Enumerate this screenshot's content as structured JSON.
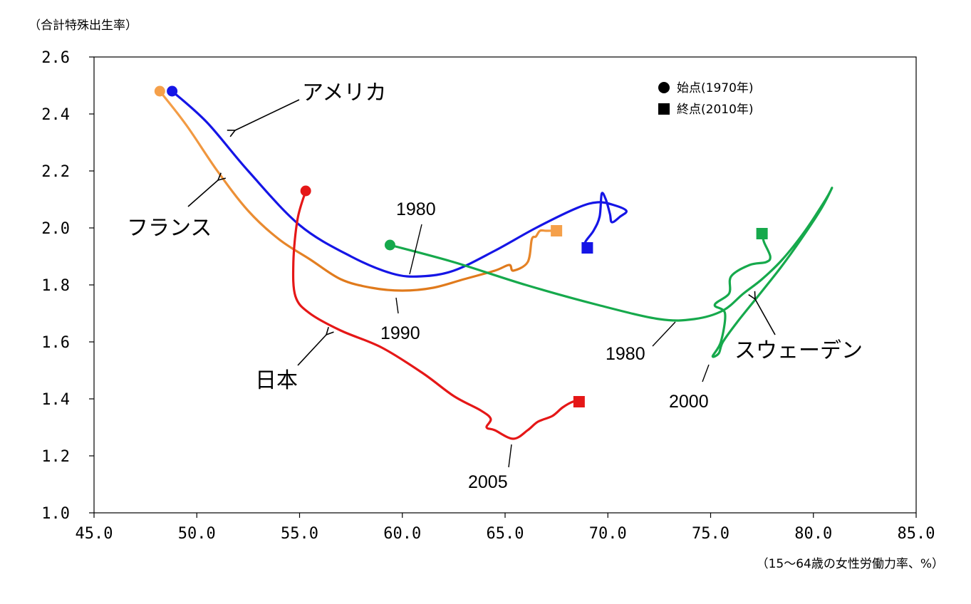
{
  "chart_data": {
    "type": "line",
    "ylabel": "（合計特殊出生率）",
    "xlabel": "（15～64歳の女性労働力率、%）",
    "xlim": [
      45.0,
      85.0
    ],
    "ylim": [
      1.0,
      2.6
    ],
    "x_ticks": [
      "45.0",
      "50.0",
      "55.0",
      "60.0",
      "65.0",
      "70.0",
      "75.0",
      "80.0",
      "85.0"
    ],
    "y_ticks": [
      "1.0",
      "1.2",
      "1.4",
      "1.6",
      "1.8",
      "2.0",
      "2.2",
      "2.4",
      "2.6"
    ],
    "legend": {
      "position": "top-right",
      "start": "始点(1970年)",
      "end": "終点(2010年)"
    },
    "series": [
      {
        "name": "アメリカ",
        "color": "#1515e6",
        "points": [
          [
            48.8,
            2.48
          ],
          [
            50.5,
            2.37
          ],
          [
            52.5,
            2.2
          ],
          [
            55.0,
            2.01
          ],
          [
            57.5,
            1.9
          ],
          [
            59.5,
            1.84
          ],
          [
            60.9,
            1.83
          ],
          [
            62.5,
            1.85
          ],
          [
            64.5,
            1.92
          ],
          [
            66.5,
            2.0
          ],
          [
            68.5,
            2.07
          ],
          [
            69.5,
            2.09
          ],
          [
            70.3,
            2.08
          ],
          [
            70.9,
            2.06
          ],
          [
            70.6,
            2.04
          ],
          [
            70.2,
            2.02
          ],
          [
            70.1,
            2.05
          ],
          [
            69.9,
            2.1
          ],
          [
            69.7,
            2.12
          ],
          [
            69.6,
            2.04
          ],
          [
            69.3,
            1.99
          ],
          [
            68.9,
            1.95
          ],
          [
            69.0,
            1.93
          ]
        ]
      },
      {
        "name": "フランス",
        "color": "#f5a04a",
        "color2": "#e07a1c",
        "points": [
          [
            48.2,
            2.48
          ],
          [
            49.5,
            2.36
          ],
          [
            51.0,
            2.2
          ],
          [
            52.5,
            2.06
          ],
          [
            54.0,
            1.96
          ],
          [
            55.5,
            1.89
          ],
          [
            57.0,
            1.82
          ],
          [
            58.5,
            1.79
          ],
          [
            60.0,
            1.78
          ],
          [
            61.5,
            1.79
          ],
          [
            63.0,
            1.82
          ],
          [
            64.5,
            1.85
          ],
          [
            65.2,
            1.87
          ],
          [
            65.4,
            1.85
          ],
          [
            66.1,
            1.88
          ],
          [
            66.3,
            1.96
          ],
          [
            66.5,
            1.97
          ],
          [
            66.7,
            1.99
          ],
          [
            67.0,
            1.99
          ],
          [
            67.5,
            1.99
          ]
        ]
      },
      {
        "name": "日本",
        "color": "#e51717",
        "points": [
          [
            55.3,
            2.13
          ],
          [
            54.9,
            2.03
          ],
          [
            54.7,
            1.88
          ],
          [
            54.8,
            1.76
          ],
          [
            55.5,
            1.7
          ],
          [
            57.0,
            1.64
          ],
          [
            59.0,
            1.58
          ],
          [
            61.0,
            1.49
          ],
          [
            62.5,
            1.41
          ],
          [
            63.8,
            1.36
          ],
          [
            64.3,
            1.33
          ],
          [
            64.1,
            1.3
          ],
          [
            64.5,
            1.29
          ],
          [
            65.4,
            1.26
          ],
          [
            66.1,
            1.29
          ],
          [
            66.6,
            1.32
          ],
          [
            67.3,
            1.34
          ],
          [
            67.8,
            1.37
          ],
          [
            68.3,
            1.39
          ],
          [
            68.6,
            1.39
          ]
        ]
      },
      {
        "name": "スウェーデン",
        "color": "#16a94c",
        "points": [
          [
            59.4,
            1.94
          ],
          [
            62.5,
            1.88
          ],
          [
            66.0,
            1.8
          ],
          [
            69.5,
            1.73
          ],
          [
            72.5,
            1.68
          ],
          [
            74.2,
            1.68
          ],
          [
            75.6,
            1.71
          ],
          [
            76.6,
            1.77
          ],
          [
            77.5,
            1.82
          ],
          [
            78.5,
            1.89
          ],
          [
            79.6,
            1.99
          ],
          [
            80.6,
            2.1
          ],
          [
            80.9,
            2.14
          ],
          [
            80.4,
            2.07
          ],
          [
            79.4,
            1.96
          ],
          [
            78.4,
            1.86
          ],
          [
            77.3,
            1.76
          ],
          [
            76.3,
            1.67
          ],
          [
            75.6,
            1.6
          ],
          [
            75.4,
            1.56
          ],
          [
            75.1,
            1.55
          ],
          [
            75.5,
            1.6
          ],
          [
            75.7,
            1.7
          ],
          [
            75.2,
            1.73
          ],
          [
            75.9,
            1.77
          ],
          [
            76.0,
            1.83
          ],
          [
            76.9,
            1.87
          ],
          [
            77.7,
            1.88
          ],
          [
            77.9,
            1.9
          ],
          [
            77.6,
            1.95
          ],
          [
            77.5,
            1.98
          ]
        ]
      }
    ],
    "annotations": [
      {
        "text": "アメリカ"
      },
      {
        "text": "フランス"
      },
      {
        "text": "日本"
      },
      {
        "text": "スウェーデン"
      },
      {
        "text": "1980"
      },
      {
        "text": "1990"
      },
      {
        "text": "2005"
      },
      {
        "text": "1980"
      },
      {
        "text": "2000"
      }
    ]
  }
}
